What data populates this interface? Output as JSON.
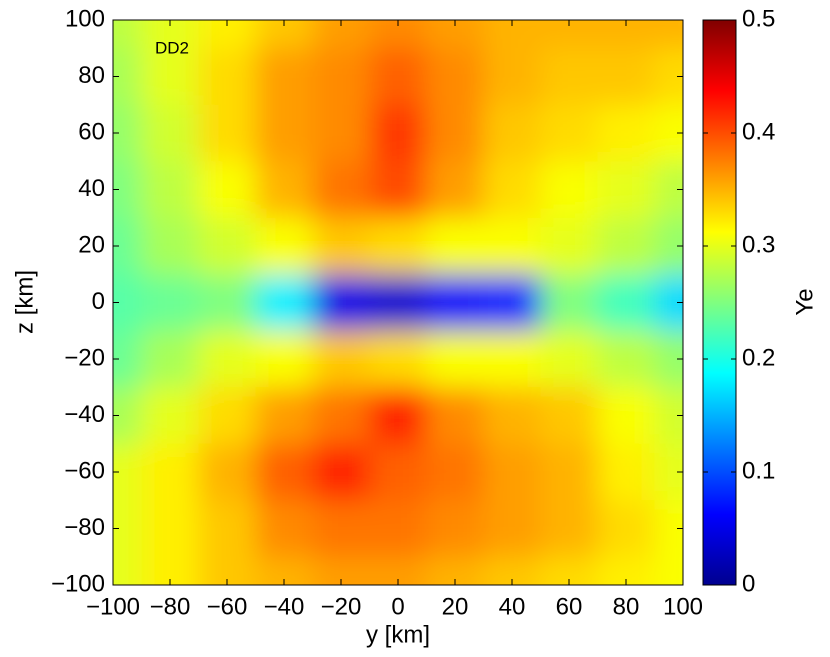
{
  "chart_data": {
    "type": "heatmap",
    "annotation": "DD2",
    "xlabel": "y [km]",
    "ylabel": "z [km]",
    "colorbar_label": "Ye",
    "colormap": "jet",
    "x": [
      -100,
      -80,
      -60,
      -40,
      -20,
      0,
      20,
      40,
      60,
      80,
      100
    ],
    "y": [
      100,
      80,
      60,
      40,
      20,
      0,
      -20,
      -40,
      -60,
      -80,
      -100
    ],
    "z": [
      [
        0.28,
        0.3,
        0.32,
        0.34,
        0.36,
        0.37,
        0.36,
        0.35,
        0.35,
        0.35,
        0.35
      ],
      [
        0.27,
        0.3,
        0.33,
        0.36,
        0.37,
        0.39,
        0.37,
        0.35,
        0.34,
        0.34,
        0.33
      ],
      [
        0.26,
        0.29,
        0.33,
        0.36,
        0.37,
        0.41,
        0.37,
        0.34,
        0.33,
        0.32,
        0.31
      ],
      [
        0.25,
        0.28,
        0.31,
        0.35,
        0.38,
        0.4,
        0.36,
        0.33,
        0.31,
        0.3,
        0.28
      ],
      [
        0.24,
        0.27,
        0.29,
        0.31,
        0.34,
        0.33,
        0.31,
        0.31,
        0.3,
        0.28,
        0.26
      ],
      [
        0.23,
        0.24,
        0.25,
        0.18,
        0.05,
        0.04,
        0.06,
        0.08,
        0.25,
        0.22,
        0.17
      ],
      [
        0.24,
        0.27,
        0.3,
        0.31,
        0.34,
        0.33,
        0.31,
        0.31,
        0.3,
        0.28,
        0.26
      ],
      [
        0.27,
        0.3,
        0.33,
        0.36,
        0.38,
        0.42,
        0.37,
        0.35,
        0.34,
        0.31,
        0.29
      ],
      [
        0.3,
        0.32,
        0.35,
        0.39,
        0.42,
        0.39,
        0.38,
        0.36,
        0.35,
        0.32,
        0.3
      ],
      [
        0.3,
        0.32,
        0.34,
        0.37,
        0.38,
        0.38,
        0.37,
        0.36,
        0.35,
        0.33,
        0.31
      ],
      [
        0.3,
        0.32,
        0.34,
        0.35,
        0.36,
        0.36,
        0.35,
        0.34,
        0.33,
        0.32,
        0.31
      ]
    ],
    "xlim": [
      -100,
      100
    ],
    "ylim": [
      -100,
      100
    ],
    "clim": [
      0,
      0.5
    ],
    "xticks": [
      {
        "value": -100,
        "label": "−100"
      },
      {
        "value": -80,
        "label": "−80"
      },
      {
        "value": -60,
        "label": "−60"
      },
      {
        "value": -40,
        "label": "−40"
      },
      {
        "value": -20,
        "label": "−20"
      },
      0,
      20,
      40,
      60,
      80,
      100
    ],
    "yticks": [
      {
        "value": -100,
        "label": "−100"
      },
      {
        "value": -80,
        "label": "−80"
      },
      {
        "value": -60,
        "label": "−60"
      },
      {
        "value": -40,
        "label": "−40"
      },
      {
        "value": -20,
        "label": "−20"
      },
      0,
      20,
      40,
      60,
      80,
      100
    ],
    "cticks": [
      0,
      0.1,
      0.2,
      0.3,
      0.4,
      0.5
    ]
  }
}
